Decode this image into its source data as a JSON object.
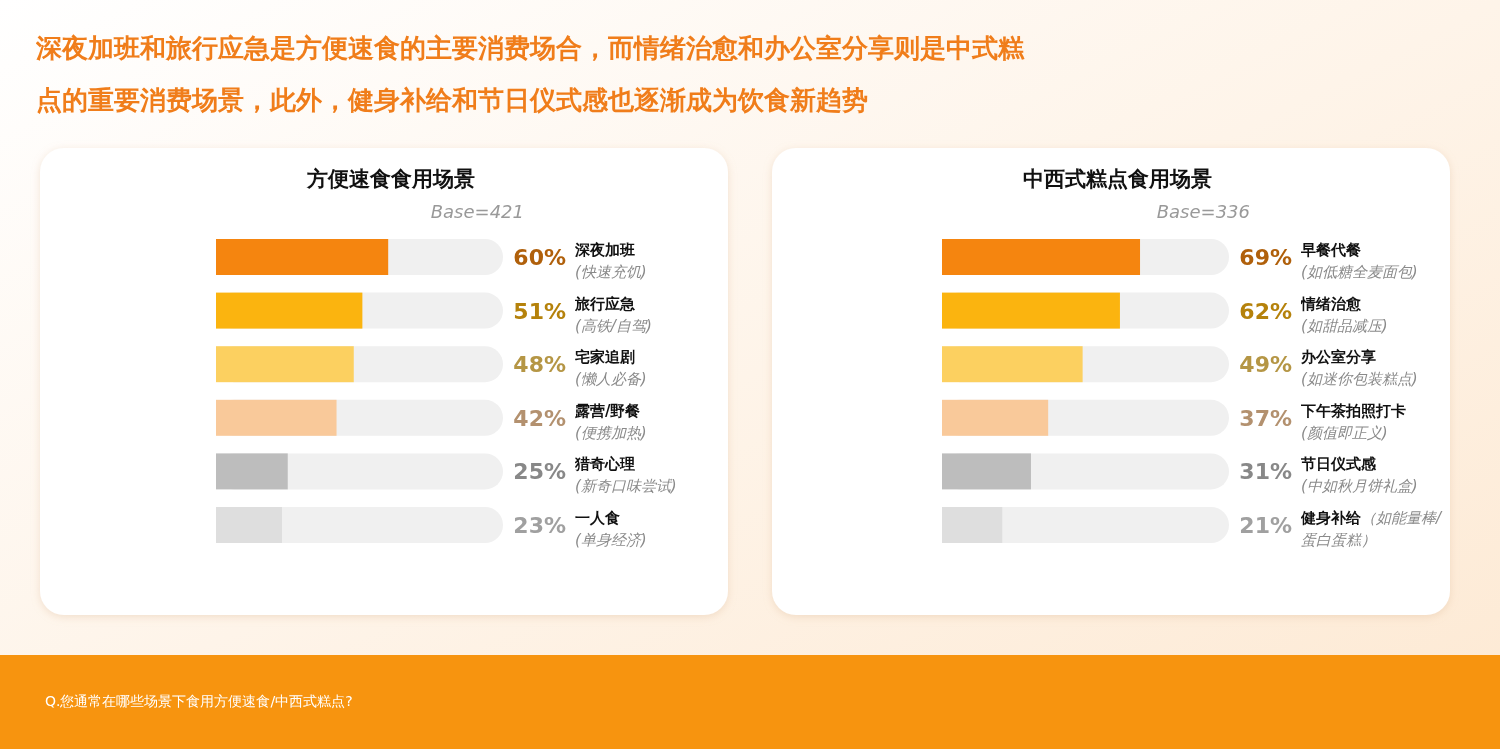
{
  "chart_data": [
    {
      "type": "bar",
      "orientation": "horizontal",
      "title": "方便速食食用场景",
      "subtitle": "Base=421",
      "categories": [
        "深夜加班\n(快速充饥)",
        "旅行应急\n(高铁/自驾)",
        "宅家追剧\n(懒人必备)",
        "露营/野餐\n(便携加热)",
        "猎奇心理\n(新奇口味尝试)",
        "一人食\n(单身经济)"
      ],
      "values": [
        60,
        51,
        48,
        42,
        25,
        23
      ],
      "value_labels": [
        "60%",
        "51%",
        "48%",
        "42%",
        "25%",
        "23%"
      ],
      "colors": [
        "#f5850f",
        "#fbb40f",
        "#fcd060",
        "#f9c99a",
        "#bdbdbd",
        "#dedede"
      ],
      "xlim": [
        0,
        100
      ],
      "annotations": [
        "深夜加班和旅行应急是方便速食的主要消费场合，而情绪治愈和办公室分享则是中式糕点的重要消费场景，此外，健身补给和节日仪式感也逐渐成为饮食新趋势",
        "Q.您通常在哪些场景下食用方便速食/中西式糕点?"
      ]
    },
    {
      "type": "bar",
      "orientation": "horizontal",
      "title": "中西式糕点食用场景",
      "subtitle": "Base=336",
      "categories": [
        "早餐代餐\n(如低糖全麦面包)",
        "情绪治愈\n(如甜品减压)",
        "办公室分享\n(如迷你包装糕点)",
        "下午茶拍照打卡\n(颜值即正义)",
        "节日仪式感\n(中如秋月饼礼盒)",
        "健身补给（如能量棒/蛋白蛋糕）"
      ],
      "values": [
        69,
        62,
        49,
        37,
        31,
        21
      ],
      "value_labels": [
        "69%",
        "62%",
        "49%",
        "37%",
        "31%",
        "21%"
      ],
      "colors": [
        "#f5850f",
        "#fbb40f",
        "#fcd060",
        "#f9c99a",
        "#bdbdbd",
        "#dedede"
      ],
      "xlim": [
        0,
        100
      ]
    }
  ]
}
